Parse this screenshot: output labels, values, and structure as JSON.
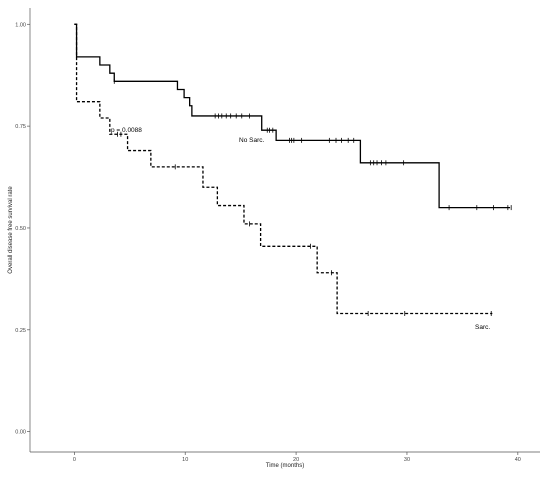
{
  "chart_data": {
    "type": "line",
    "title": "",
    "xlabel": "Time (months)",
    "ylabel": "Overall disease free survival rate",
    "xlim": [
      -4,
      42
    ],
    "ylim": [
      -0.05,
      1.04
    ],
    "x_ticks": [
      0,
      10,
      20,
      30,
      40
    ],
    "y_ticks": [
      {
        "value": 0.0,
        "label": "0.00"
      },
      {
        "value": 0.25,
        "label": "0.25"
      },
      {
        "value": 0.5,
        "label": "0.50"
      },
      {
        "value": 0.75,
        "label": "0.75"
      },
      {
        "value": 1.0,
        "label": "1.00"
      }
    ],
    "grid": false,
    "p_value_label": "p = 0.0088",
    "series": [
      {
        "name": "No Sarc.",
        "line_style": "solid",
        "color": "#000000",
        "steps": [
          [
            0,
            1.0
          ],
          [
            0.2,
            0.92
          ],
          [
            2.3,
            0.9
          ],
          [
            3.2,
            0.88
          ],
          [
            3.6,
            0.86
          ],
          [
            9.3,
            0.84
          ],
          [
            9.9,
            0.82
          ],
          [
            10.4,
            0.8
          ],
          [
            10.6,
            0.775
          ],
          [
            16.9,
            0.74
          ],
          [
            18.2,
            0.715
          ],
          [
            25.8,
            0.66
          ],
          [
            32.9,
            0.55
          ],
          [
            39.3,
            0.55
          ]
        ],
        "censor_times": [
          3.6,
          12.7,
          13.0,
          13.3,
          13.7,
          14.1,
          14.6,
          15.1,
          15.8,
          17.4,
          17.6,
          17.9,
          19.4,
          19.6,
          19.8,
          20.5,
          23.0,
          23.6,
          24.1,
          24.7,
          25.2,
          26.7,
          27.0,
          27.3,
          27.7,
          28.1,
          29.7,
          33.8,
          36.3,
          37.8,
          39.1,
          39.4
        ]
      },
      {
        "name": "Sarc.",
        "line_style": "dashed",
        "color": "#000000",
        "steps": [
          [
            0,
            1.0
          ],
          [
            0.2,
            0.81
          ],
          [
            2.3,
            0.77
          ],
          [
            3.2,
            0.73
          ],
          [
            4.8,
            0.69
          ],
          [
            6.9,
            0.65
          ],
          [
            11.6,
            0.6
          ],
          [
            12.9,
            0.555
          ],
          [
            15.3,
            0.51
          ],
          [
            16.8,
            0.455
          ],
          [
            21.9,
            0.39
          ],
          [
            23.7,
            0.29
          ],
          [
            37.7,
            0.29
          ]
        ],
        "censor_times": [
          3.9,
          4.2,
          9.1,
          15.8,
          21.3,
          23.2,
          26.5,
          29.8,
          37.6
        ]
      }
    ]
  }
}
